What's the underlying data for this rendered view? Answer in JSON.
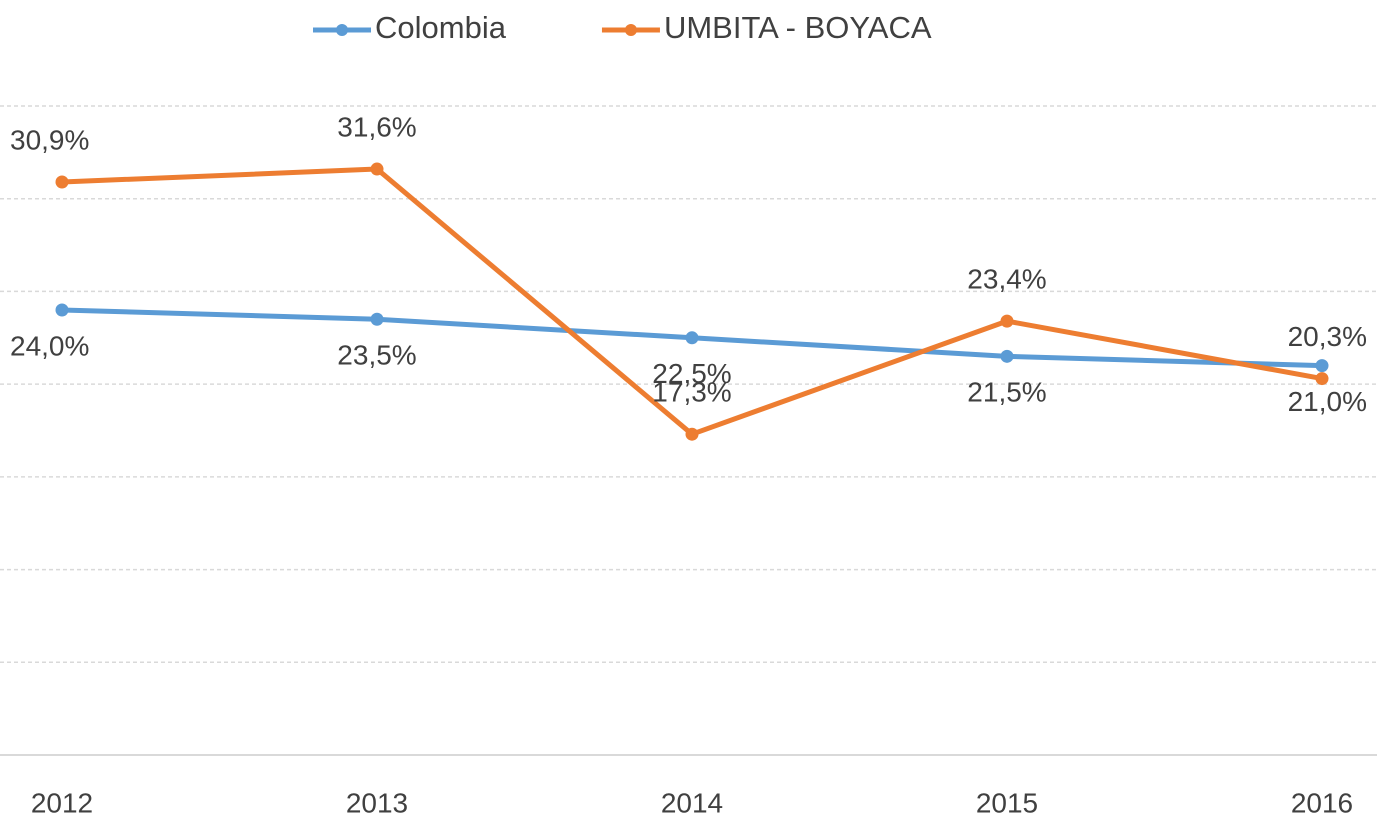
{
  "chart_data": {
    "type": "line",
    "categories": [
      "2012",
      "2013",
      "2014",
      "2015",
      "2016"
    ],
    "series": [
      {
        "name": "Colombia",
        "color": "#5b9bd5",
        "values": [
          24.0,
          23.5,
          22.5,
          21.5,
          21.0
        ],
        "value_labels": [
          "24,0%",
          "23,5%",
          "22,5%",
          "21,5%",
          "21,0%"
        ],
        "label_position": "below"
      },
      {
        "name": "UMBITA - BOYACA",
        "color": "#ed7d31",
        "values": [
          30.9,
          31.6,
          17.3,
          23.4,
          20.3
        ],
        "value_labels": [
          "30,9%",
          "31,6%",
          "17,3%",
          "23,4%",
          "20,3%"
        ],
        "label_position": "above"
      }
    ],
    "ylim": [
      0,
      35
    ],
    "yticks": [
      0,
      5,
      10,
      15,
      20,
      25,
      30,
      35
    ],
    "grid": true,
    "legend": "top"
  }
}
